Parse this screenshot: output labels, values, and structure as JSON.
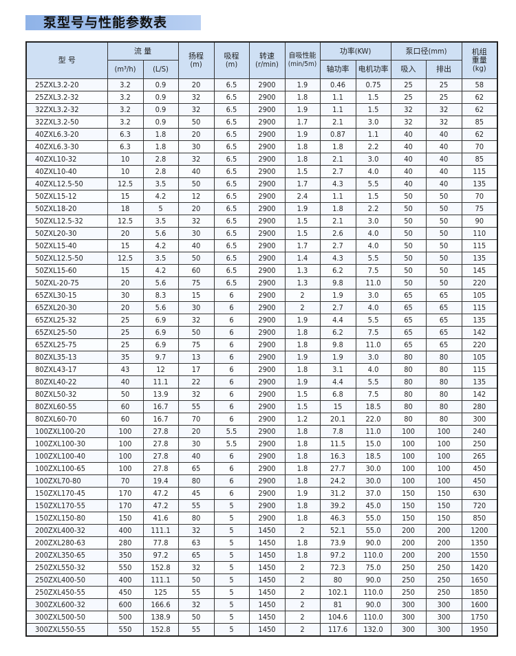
{
  "title": "泵型号与性能参数表",
  "headers": {
    "model": "型  号",
    "flow": "流  量",
    "flow_m3h": "(m³/h)",
    "flow_ls": "(L/S)",
    "head": "扬程\n(m)",
    "suction": "吸程\n(m)",
    "speed": "转速\n(r/min)",
    "self_priming": "自吸性能\n(min/5m)",
    "power": "功率(KW)",
    "shaft_power": "轴功率",
    "motor_power": "电机功率",
    "port": "泵口径(mm)",
    "inlet": "吸入",
    "outlet": "排出",
    "weight": "机组\n重量\n(kg)"
  },
  "rows": [
    [
      "25ZXL3.2-20",
      "3.2",
      "0.9",
      "20",
      "6.5",
      "2900",
      "1.9",
      "0.46",
      "0.75",
      "25",
      "25",
      "58"
    ],
    [
      "25ZXL3.2-32",
      "3.2",
      "0.9",
      "32",
      "6.5",
      "2900",
      "1.8",
      "1.1",
      "1.5",
      "25",
      "25",
      "62"
    ],
    [
      "32ZXL3.2-32",
      "3.2",
      "0.9",
      "32",
      "6.5",
      "2900",
      "1.9",
      "1.1",
      "1.5",
      "32",
      "32",
      "62"
    ],
    [
      "32ZXL3.2-50",
      "3.2",
      "0.9",
      "50",
      "6.5",
      "2900",
      "1.7",
      "2.1",
      "3.0",
      "32",
      "32",
      "85"
    ],
    [
      "40ZXL6.3-20",
      "6.3",
      "1.8",
      "20",
      "6.5",
      "2900",
      "1.9",
      "0.87",
      "1.1",
      "40",
      "40",
      "62"
    ],
    [
      "40ZXL6.3-30",
      "6.3",
      "1.8",
      "30",
      "6.5",
      "2900",
      "1.8",
      "1.8",
      "2.2",
      "40",
      "40",
      "70"
    ],
    [
      "40ZXL10-32",
      "10",
      "2.8",
      "32",
      "6.5",
      "2900",
      "1.8",
      "2.1",
      "3.0",
      "40",
      "40",
      "85"
    ],
    [
      "40ZXL10-40",
      "10",
      "2.8",
      "40",
      "6.5",
      "2900",
      "1.5",
      "2.7",
      "4.0",
      "40",
      "40",
      "115"
    ],
    [
      "40ZXL12.5-50",
      "12.5",
      "3.5",
      "50",
      "6.5",
      "2900",
      "1.7",
      "4.3",
      "5.5",
      "40",
      "40",
      "135"
    ],
    [
      "50ZXL15-12",
      "15",
      "4.2",
      "12",
      "6.5",
      "2900",
      "2.4",
      "1.1",
      "1.5",
      "50",
      "50",
      "70"
    ],
    [
      "50ZXL18-20",
      "18",
      "5",
      "20",
      "6.5",
      "2900",
      "1.9",
      "1.8",
      "2.2",
      "50",
      "50",
      "75"
    ],
    [
      "50ZXL12.5-32",
      "12.5",
      "3.5",
      "32",
      "6.5",
      "2900",
      "1.5",
      "2.1",
      "3.0",
      "50",
      "50",
      "90"
    ],
    [
      "50ZXL20-30",
      "20",
      "5.6",
      "30",
      "6.5",
      "2900",
      "1.5",
      "2.6",
      "4.0",
      "50",
      "50",
      "110"
    ],
    [
      "50ZXL15-40",
      "15",
      "4.2",
      "40",
      "6.5",
      "2900",
      "1.7",
      "2.7",
      "4.0",
      "50",
      "50",
      "115"
    ],
    [
      "50ZXL12.5-50",
      "12.5",
      "3.5",
      "50",
      "6.5",
      "2900",
      "1.4",
      "4.3",
      "5.5",
      "50",
      "50",
      "135"
    ],
    [
      "50ZXL15-60",
      "15",
      "4.2",
      "60",
      "6.5",
      "2900",
      "1.3",
      "6.2",
      "7.5",
      "50",
      "50",
      "145"
    ],
    [
      "50ZXL-20-75",
      "20",
      "5.6",
      "75",
      "6.5",
      "2900",
      "1.3",
      "9.8",
      "11.0",
      "50",
      "50",
      "220"
    ],
    [
      "65ZXL30-15",
      "30",
      "8.3",
      "15",
      "6",
      "2900",
      "2",
      "1.9",
      "3.0",
      "65",
      "65",
      "105"
    ],
    [
      "65ZXL20-30",
      "20",
      "5.6",
      "30",
      "6",
      "2900",
      "2",
      "2.7",
      "4.0",
      "65",
      "65",
      "115"
    ],
    [
      "65ZXL25-32",
      "25",
      "6.9",
      "32",
      "6",
      "2900",
      "1.9",
      "4.4",
      "5.5",
      "65",
      "65",
      "135"
    ],
    [
      "65ZXL25-50",
      "25",
      "6.9",
      "50",
      "6",
      "2900",
      "1.8",
      "6.2",
      "7.5",
      "65",
      "65",
      "142"
    ],
    [
      "65ZXL25-75",
      "25",
      "6.9",
      "75",
      "6",
      "2900",
      "1.8",
      "9.8",
      "11.0",
      "65",
      "65",
      "220"
    ],
    [
      "80ZXL35-13",
      "35",
      "9.7",
      "13",
      "6",
      "2900",
      "1.9",
      "1.9",
      "3.0",
      "80",
      "80",
      "105"
    ],
    [
      "80ZXL43-17",
      "43",
      "12",
      "17",
      "6",
      "2900",
      "1.8",
      "3.1",
      "4.0",
      "80",
      "80",
      "115"
    ],
    [
      "80ZXL40-22",
      "40",
      "11.1",
      "22",
      "6",
      "2900",
      "1.9",
      "4.4",
      "5.5",
      "80",
      "80",
      "135"
    ],
    [
      "80ZXL50-32",
      "50",
      "13.9",
      "32",
      "6",
      "2900",
      "1.5",
      "6.8",
      "7.5",
      "80",
      "80",
      "142"
    ],
    [
      "80ZXL60-55",
      "60",
      "16.7",
      "55",
      "6",
      "2900",
      "1.5",
      "15",
      "18.5",
      "80",
      "80",
      "280"
    ],
    [
      "80ZXL60-70",
      "60",
      "16.7",
      "70",
      "6",
      "2900",
      "1.2",
      "20.1",
      "22.0",
      "80",
      "80",
      "300"
    ],
    [
      "100ZXL100-20",
      "100",
      "27.8",
      "20",
      "5.5",
      "2900",
      "1.8",
      "7.8",
      "11.0",
      "100",
      "100",
      "240"
    ],
    [
      "100ZXL100-30",
      "100",
      "27.8",
      "30",
      "5.5",
      "2900",
      "1.8",
      "11.5",
      "15.0",
      "100",
      "100",
      "250"
    ],
    [
      "100ZXL100-40",
      "100",
      "27.8",
      "40",
      "6",
      "2900",
      "1.8",
      "16.3",
      "18.5",
      "100",
      "100",
      "265"
    ],
    [
      "100ZXL100-65",
      "100",
      "27.8",
      "65",
      "6",
      "2900",
      "1.8",
      "27.7",
      "30.0",
      "100",
      "100",
      "450"
    ],
    [
      "100ZXL70-80",
      "70",
      "19.4",
      "80",
      "6",
      "2900",
      "1.8",
      "24.2",
      "30.0",
      "100",
      "100",
      "450"
    ],
    [
      "150ZXL170-45",
      "170",
      "47.2",
      "45",
      "6",
      "2900",
      "1.9",
      "31.2",
      "37.0",
      "150",
      "150",
      "630"
    ],
    [
      "150ZXL170-55",
      "170",
      "47.2",
      "55",
      "5",
      "2900",
      "1.8",
      "39.2",
      "45.0",
      "150",
      "150",
      "720"
    ],
    [
      "150ZXL150-80",
      "150",
      "41.6",
      "80",
      "5",
      "2900",
      "1.8",
      "46.3",
      "55.0",
      "150",
      "150",
      "850"
    ],
    [
      "200ZXL400-32",
      "400",
      "111.1",
      "32",
      "5",
      "1450",
      "2",
      "52.1",
      "55.0",
      "200",
      "200",
      "1200"
    ],
    [
      "200ZXL280-63",
      "280",
      "77.8",
      "63",
      "5",
      "1450",
      "1.8",
      "73.9",
      "90.0",
      "200",
      "200",
      "1350"
    ],
    [
      "200ZXL350-65",
      "350",
      "97.2",
      "65",
      "5",
      "1450",
      "1.8",
      "97.2",
      "110.0",
      "200",
      "200",
      "1550"
    ],
    [
      "250ZXL550-32",
      "550",
      "152.8",
      "32",
      "5",
      "1450",
      "2",
      "72.3",
      "75.0",
      "250",
      "250",
      "1420"
    ],
    [
      "250ZXL400-50",
      "400",
      "111.1",
      "50",
      "5",
      "1450",
      "2",
      "80",
      "90.0",
      "250",
      "250",
      "1650"
    ],
    [
      "250ZXL450-55",
      "450",
      "125",
      "55",
      "5",
      "1450",
      "2",
      "102.1",
      "110.0",
      "250",
      "250",
      "1850"
    ],
    [
      "300ZXL600-32",
      "600",
      "166.6",
      "32",
      "5",
      "1450",
      "2",
      "81",
      "90.0",
      "300",
      "300",
      "1600"
    ],
    [
      "300ZXL500-50",
      "500",
      "138.9",
      "50",
      "5",
      "1450",
      "2",
      "104.6",
      "110.0",
      "300",
      "300",
      "1750"
    ],
    [
      "300ZXL550-55",
      "550",
      "152.8",
      "55",
      "5",
      "1450",
      "2",
      "117.6",
      "132.0",
      "300",
      "300",
      "1950"
    ]
  ]
}
